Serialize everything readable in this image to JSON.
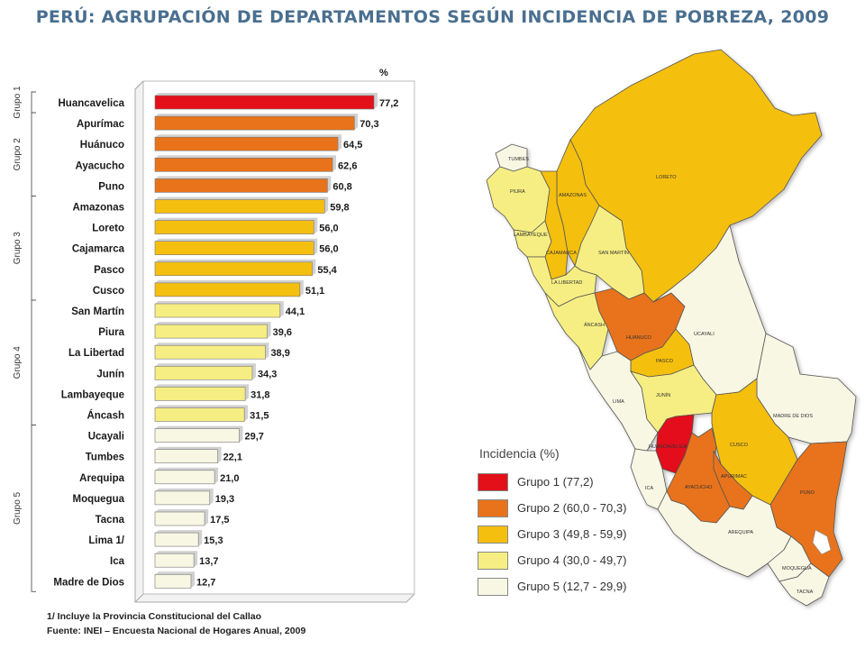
{
  "title": "PERÚ: AGRUPACIÓN DE DEPARTAMENTOS SEGÚN INCIDENCIA DE POBREZA, 2009",
  "chart_data": {
    "type": "bar",
    "orientation": "horizontal",
    "unit_label": "%",
    "xlim": [
      0,
      80
    ],
    "categories": [
      "Huancavelica",
      "Apurímac",
      "Huánuco",
      "Ayacucho",
      "Puno",
      "Amazonas",
      "Loreto",
      "Cajamarca",
      "Pasco",
      "Cusco",
      "San Martín",
      "Piura",
      "La Libertad",
      "Junín",
      "Lambayeque",
      "Áncash",
      "Ucayali",
      "Tumbes",
      "Arequipa",
      "Moquegua",
      "Tacna",
      "Lima 1/",
      "Ica",
      "Madre de Dios"
    ],
    "values": [
      77.2,
      70.3,
      64.5,
      62.6,
      60.8,
      59.8,
      56.0,
      56.0,
      55.4,
      51.1,
      44.1,
      39.6,
      38.9,
      34.3,
      31.8,
      31.5,
      29.7,
      22.1,
      21.0,
      19.3,
      17.5,
      15.3,
      13.7,
      12.7
    ],
    "value_labels": [
      "77,2",
      "70,3",
      "64,5",
      "62,6",
      "60,8",
      "59,8",
      "56,0",
      "56,0",
      "55,4",
      "51,1",
      "44,1",
      "39,6",
      "38,9",
      "34,3",
      "31,8",
      "31,5",
      "29,7",
      "22,1",
      "21,0",
      "19,3",
      "17,5",
      "15,3",
      "13,7",
      "12,7"
    ],
    "group_of_bar": [
      1,
      2,
      2,
      2,
      2,
      3,
      3,
      3,
      3,
      3,
      4,
      4,
      4,
      4,
      4,
      4,
      5,
      5,
      5,
      5,
      5,
      5,
      5,
      5
    ],
    "groups": [
      {
        "label": "Grupo 1",
        "start": 0,
        "end": 0
      },
      {
        "label": "Grupo 2",
        "start": 1,
        "end": 4
      },
      {
        "label": "Grupo 3",
        "start": 5,
        "end": 9
      },
      {
        "label": "Grupo 4",
        "start": 10,
        "end": 15
      },
      {
        "label": "Grupo 5",
        "start": 16,
        "end": 23
      }
    ],
    "colors": {
      "1": "#e3101a",
      "2": "#e8731a",
      "3": "#f5bf0f",
      "4": "#f6ee82",
      "5": "#f8f7e4"
    }
  },
  "legend": {
    "title": "Incidencia (%)",
    "items": [
      {
        "label": "Grupo 1 (77,2)",
        "color": "#e3101a"
      },
      {
        "label": "Grupo 2 (60,0 - 70,3)",
        "color": "#e8731a"
      },
      {
        "label": "Grupo 3 (49,8 - 59,9)",
        "color": "#f5bf0f"
      },
      {
        "label": "Grupo 4 (30,0 - 49,7)",
        "color": "#f6ee82"
      },
      {
        "label": "Grupo 5 (12,7 - 29,9)",
        "color": "#f8f7e4"
      }
    ]
  },
  "map_labels": {
    "tumbes": "TUMBES",
    "piura": "PIURA",
    "lambayeque": "LAMBAYEQUE",
    "amazonas": "AMAZONAS",
    "cajamarca": "CAJAMARCA",
    "loreto": "LORETO",
    "san_martin": "SAN MARTÍN",
    "la_libertad": "LA LIBERTAD",
    "ancash": "ÁNCASH",
    "huanuco": "HUÁNUCO",
    "ucayali": "UCAYALI",
    "pasco": "PASCO",
    "junin": "JUNÍN",
    "lima": "LIMA",
    "madre_de_dios": "MADRE DE DIOS",
    "huancavelica": "HUANCAVELICA",
    "cusco": "CUSCO",
    "ica": "ICA",
    "ayacucho": "AYACUCHO",
    "apurimac": "APURIMAC",
    "puno": "PUNO",
    "arequipa": "AREQUIPA",
    "moquegua": "MOQUEGUA",
    "tacna": "TACNA"
  },
  "footnote": "1/ Incluye la Provincia Constitucional del Callao",
  "source": "Fuente: INEI – Encuesta Nacional de Hogares Anual, 2009"
}
